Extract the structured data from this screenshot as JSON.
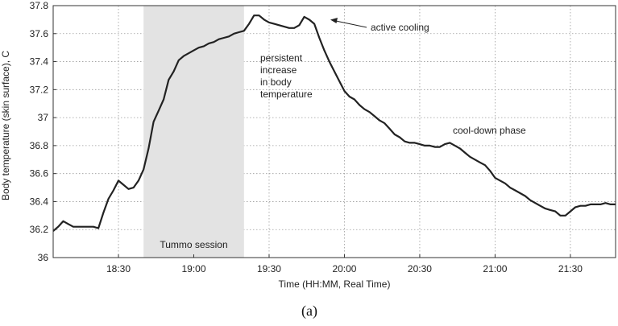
{
  "chart_data": {
    "type": "line",
    "xlabel": "Time (HH:MM, Real Time)",
    "ylabel": "Body temperature (skin surface), C",
    "caption": "(a)",
    "xlim": [
      "18:04",
      "21:48"
    ],
    "ylim": [
      36.0,
      37.8
    ],
    "x_ticks": [
      "18:30",
      "19:00",
      "19:30",
      "20:00",
      "20:30",
      "21:00",
      "21:30"
    ],
    "y_ticks": [
      "36",
      "36.2",
      "36.4",
      "36.6",
      "36.8",
      "37",
      "37.2",
      "37.4",
      "37.6",
      "37.8"
    ],
    "grid": true,
    "shaded_region": {
      "start": "18:40",
      "end": "19:20",
      "label": "Tummo session",
      "color": "#e3e3e3"
    },
    "line_color": "#222222",
    "annotations": [
      {
        "text": "active cooling"
      },
      {
        "lines": [
          "persistent",
          "increase",
          "in body",
          "temperature"
        ]
      },
      {
        "text": "cool-down phase"
      }
    ],
    "series": [
      {
        "x": [
          "18:04",
          "18:06",
          "18:08",
          "18:10",
          "18:12",
          "18:14",
          "18:16",
          "18:18",
          "18:20",
          "18:22",
          "18:24",
          "18:26",
          "18:28",
          "18:30",
          "18:32",
          "18:34",
          "18:36",
          "18:38",
          "18:40",
          "18:42",
          "18:44",
          "18:46",
          "18:48",
          "18:50",
          "18:52",
          "18:54",
          "18:56",
          "18:58",
          "19:00",
          "19:02",
          "19:04",
          "19:06",
          "19:08",
          "19:10",
          "19:12",
          "19:14",
          "19:16",
          "19:18",
          "19:20",
          "19:22",
          "19:24",
          "19:26",
          "19:28",
          "19:30",
          "19:32",
          "19:34",
          "19:36",
          "19:38",
          "19:40",
          "19:42",
          "19:44",
          "19:46",
          "19:48",
          "19:50",
          "19:52",
          "19:54",
          "19:56",
          "19:58",
          "20:00",
          "20:02",
          "20:04",
          "20:06",
          "20:08",
          "20:10",
          "20:12",
          "20:14",
          "20:16",
          "20:18",
          "20:20",
          "20:22",
          "20:24",
          "20:26",
          "20:28",
          "20:30",
          "20:32",
          "20:34",
          "20:36",
          "20:38",
          "20:40",
          "20:42",
          "20:44",
          "20:46",
          "20:48",
          "20:50",
          "20:52",
          "20:54",
          "20:56",
          "20:58",
          "21:00",
          "21:02",
          "21:04",
          "21:06",
          "21:08",
          "21:10",
          "21:12",
          "21:14",
          "21:16",
          "21:18",
          "21:20",
          "21:22",
          "21:24",
          "21:26",
          "21:28",
          "21:30",
          "21:32",
          "21:34",
          "21:36",
          "21:38",
          "21:40",
          "21:42",
          "21:44",
          "21:46",
          "21:48"
        ],
        "values": [
          36.19,
          36.22,
          36.26,
          36.24,
          36.22,
          36.22,
          36.22,
          36.22,
          36.22,
          36.21,
          36.32,
          36.42,
          36.48,
          36.55,
          36.52,
          36.49,
          36.5,
          36.55,
          36.63,
          36.78,
          36.97,
          37.05,
          37.13,
          37.27,
          37.33,
          37.41,
          37.44,
          37.46,
          37.48,
          37.5,
          37.51,
          37.53,
          37.54,
          37.56,
          37.57,
          37.58,
          37.6,
          37.61,
          37.62,
          37.67,
          37.73,
          37.73,
          37.7,
          37.68,
          37.67,
          37.66,
          37.65,
          37.64,
          37.64,
          37.66,
          37.72,
          37.7,
          37.67,
          37.57,
          37.48,
          37.4,
          37.33,
          37.26,
          37.19,
          37.15,
          37.13,
          37.09,
          37.06,
          37.04,
          37.01,
          36.98,
          36.96,
          36.92,
          36.88,
          36.86,
          36.83,
          36.82,
          36.82,
          36.81,
          36.8,
          36.8,
          36.79,
          36.79,
          36.81,
          36.82,
          36.8,
          36.78,
          36.75,
          36.72,
          36.7,
          36.68,
          36.66,
          36.62,
          36.57,
          36.55,
          36.53,
          36.5,
          36.48,
          36.46,
          36.44,
          36.41,
          36.39,
          36.37,
          36.35,
          36.34,
          36.33,
          36.3,
          36.3,
          36.33,
          36.36,
          36.37,
          36.37,
          36.38,
          36.38,
          36.38,
          36.39,
          36.38,
          36.38
        ]
      }
    ]
  }
}
